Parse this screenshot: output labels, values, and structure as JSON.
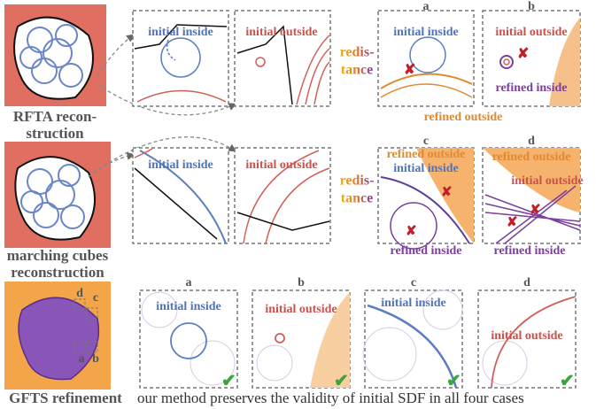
{
  "rows": [
    {
      "caption": [
        "RFTA recon-",
        "struction"
      ],
      "redistance": [
        "redis-",
        "tance"
      ],
      "panels": [
        {
          "texts": [
            "initial inside"
          ]
        },
        {
          "texts": [
            "initial outside"
          ]
        },
        {
          "letter": "a",
          "texts": [
            "initial inside",
            "refined outside"
          ]
        },
        {
          "letter": "b",
          "texts": [
            "initial outside",
            "refined inside"
          ]
        }
      ]
    },
    {
      "caption": [
        "marching cubes",
        "reconstruction"
      ],
      "redistance": [
        "redis-",
        "tance"
      ],
      "panels": [
        {
          "texts": [
            "initial inside"
          ]
        },
        {
          "texts": [
            "initial outside"
          ]
        },
        {
          "letter": "c",
          "texts": [
            "refined outside",
            "initial inside",
            "refined inside"
          ]
        },
        {
          "letter": "d",
          "texts": [
            "refined outside",
            "initial outside",
            "refined inside"
          ]
        }
      ]
    },
    {
      "caption": [
        "GFTS refinement"
      ],
      "thumb_labels": [
        "d",
        "c",
        "a",
        "b"
      ],
      "panels": [
        {
          "letter": "a",
          "texts": [
            "initial inside"
          ]
        },
        {
          "letter": "b",
          "texts": [
            "initial outside"
          ]
        },
        {
          "letter": "c",
          "texts": [
            "initial inside"
          ]
        },
        {
          "letter": "d",
          "texts": [
            "initial outside"
          ]
        }
      ],
      "note": "our method preserves the validity of initial SDF in all four cases"
    }
  ]
}
